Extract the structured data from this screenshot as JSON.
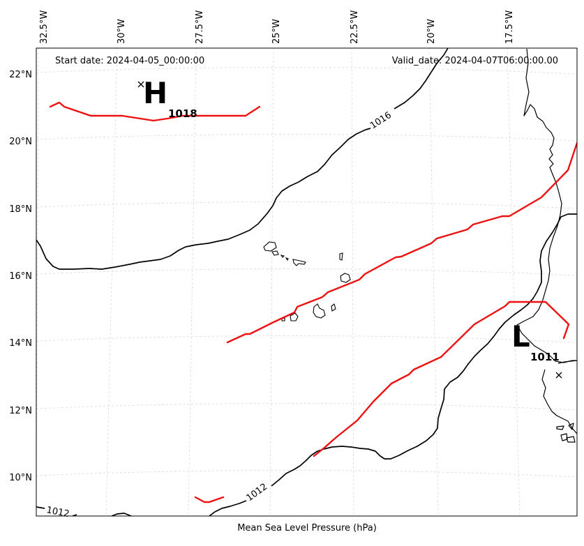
{
  "map": {
    "start_date": "Start date: 2024-04-05_00:00:00",
    "valid_date": "Valid_date: 2024-04-07T06:00:00.00",
    "footer_label": "Mean Sea Level Pressure (hPa)",
    "longitude_labels": [
      "32.5°W",
      "30°W",
      "27.5°W",
      "25°W",
      "22.5°W",
      "20°W",
      "17.5°W"
    ],
    "latitude_labels": [
      "22°N",
      "20°N",
      "18°N",
      "16°N",
      "14°N",
      "12°N",
      "10°N"
    ],
    "isobar_labels": [
      "1016",
      "1012",
      "1012"
    ],
    "pressure_centers": [
      {
        "letter": "H",
        "value": "1018"
      },
      {
        "letter": "L",
        "value": "1011"
      }
    ],
    "colors": {
      "isobar": "#000000",
      "front": "#ee1111",
      "grid": "#d4d4d4",
      "coastline": "#000000"
    }
  }
}
